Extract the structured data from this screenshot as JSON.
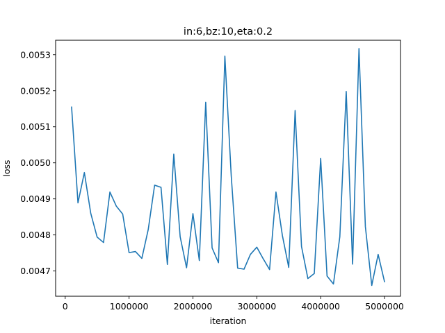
{
  "chart_data": {
    "type": "line",
    "title": "in:6,bz:10,eta:0.2",
    "xlabel": "iteration",
    "ylabel": "loss",
    "xlim": [
      -150000,
      5250000
    ],
    "ylim": [
      0.00463,
      0.00534
    ],
    "grid": false,
    "x_ticks": [
      0,
      1000000,
      2000000,
      3000000,
      4000000,
      5000000
    ],
    "x_tick_labels": [
      "0",
      "1000000",
      "2000000",
      "3000000",
      "4000000",
      "5000000"
    ],
    "y_ticks": [
      0.0047,
      0.0048,
      0.0049,
      0.005,
      0.0051,
      0.0052,
      0.0053
    ],
    "y_tick_labels": [
      "0.0047",
      "0.0048",
      "0.0049",
      "0.0050",
      "0.0051",
      "0.0052",
      "0.0053"
    ],
    "series": [
      {
        "color": "#1f77b4",
        "x": [
          100000,
          200000,
          300000,
          400000,
          500000,
          600000,
          700000,
          800000,
          900000,
          1000000,
          1100000,
          1200000,
          1300000,
          1400000,
          1500000,
          1600000,
          1700000,
          1800000,
          1900000,
          2000000,
          2100000,
          2200000,
          2300000,
          2400000,
          2500000,
          2600000,
          2700000,
          2800000,
          2900000,
          3000000,
          3100000,
          3200000,
          3300000,
          3400000,
          3500000,
          3600000,
          3700000,
          3800000,
          3900000,
          4000000,
          4100000,
          4200000,
          4300000,
          4400000,
          4500000,
          4600000,
          4700000,
          4800000,
          4900000,
          5000000
        ],
        "values": [
          0.005155,
          0.004889,
          0.004973,
          0.00486,
          0.004794,
          0.004779,
          0.004919,
          0.00488,
          0.004858,
          0.004751,
          0.004754,
          0.004735,
          0.004815,
          0.004938,
          0.004932,
          0.004718,
          0.005024,
          0.004795,
          0.004709,
          0.004859,
          0.004729,
          0.005168,
          0.004764,
          0.004723,
          0.005296,
          0.004963,
          0.004708,
          0.004705,
          0.004746,
          0.004766,
          0.004734,
          0.004704,
          0.004919,
          0.004799,
          0.00471,
          0.005145,
          0.004768,
          0.004679,
          0.004693,
          0.005012,
          0.004686,
          0.004664,
          0.004795,
          0.005198,
          0.004719,
          0.005317,
          0.004823,
          0.00466,
          0.004746,
          0.00467
        ]
      }
    ]
  }
}
